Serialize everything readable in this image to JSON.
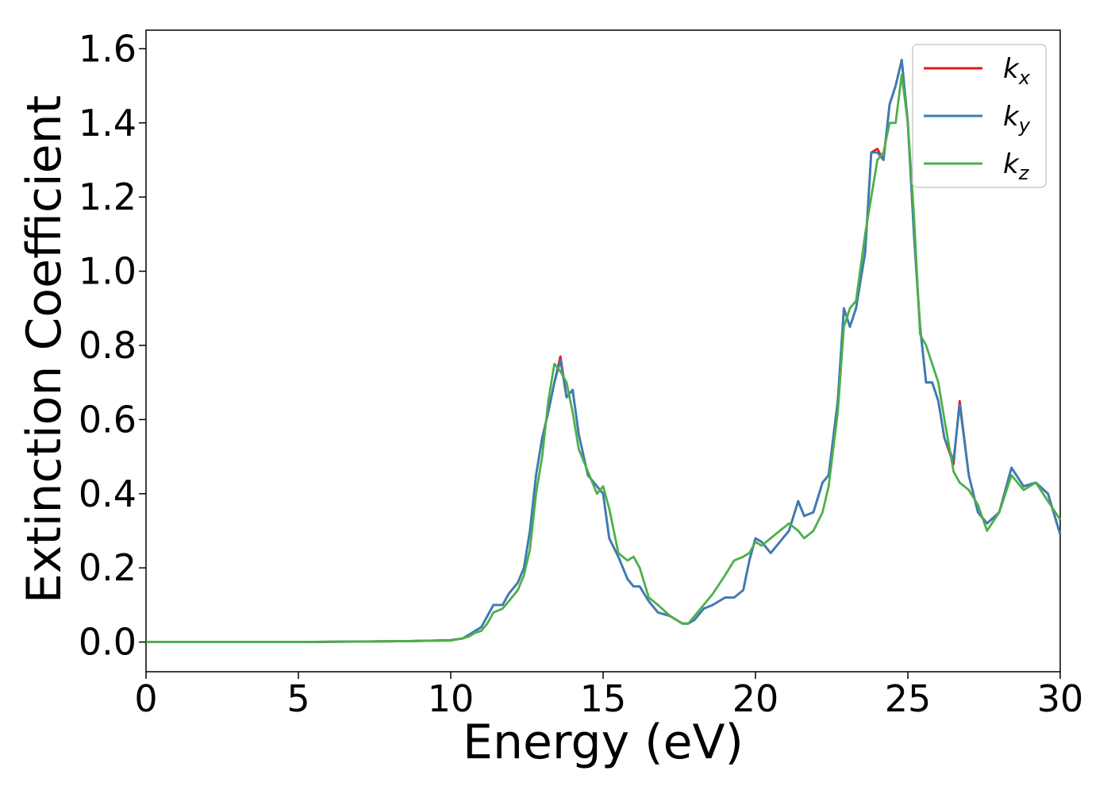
{
  "chart_data": {
    "type": "line",
    "title": "",
    "xlabel": "Energy (eV)",
    "ylabel": "Extinction Coefficient",
    "xlim": [
      0,
      30
    ],
    "ylim": [
      -0.08,
      1.65
    ],
    "xticks": [
      0,
      5,
      10,
      15,
      20,
      25,
      30
    ],
    "xtick_labels": [
      "0",
      "5",
      "10",
      "15",
      "20",
      "25",
      "30"
    ],
    "yticks": [
      0.0,
      0.2,
      0.4,
      0.6,
      0.8,
      1.0,
      1.2,
      1.4,
      1.6
    ],
    "ytick_labels": [
      "0.0",
      "0.2",
      "0.4",
      "0.6",
      "0.8",
      "1.0",
      "1.2",
      "1.4",
      "1.6"
    ],
    "grid": false,
    "legend_position": "top-right",
    "series": [
      {
        "name": "k",
        "subscript": "x",
        "color": "#e41a1c",
        "x": [
          0,
          5,
          8,
          9,
          10,
          10.4,
          10.6,
          10.8,
          11.0,
          11.2,
          11.4,
          11.7,
          11.9,
          12.2,
          12.4,
          12.6,
          12.8,
          13.0,
          13.2,
          13.4,
          13.6,
          13.8,
          14.0,
          14.2,
          14.5,
          14.8,
          15.0,
          15.2,
          15.5,
          15.8,
          16.0,
          16.2,
          16.5,
          16.8,
          17.2,
          17.6,
          17.8,
          18.0,
          18.3,
          18.6,
          19.0,
          19.3,
          19.6,
          19.8,
          20.0,
          20.2,
          20.5,
          20.8,
          21.1,
          21.4,
          21.6,
          21.9,
          22.2,
          22.4,
          22.7,
          22.9,
          23.1,
          23.3,
          23.6,
          23.8,
          24.0,
          24.2,
          24.4,
          24.6,
          24.8,
          25.0,
          25.2,
          25.4,
          25.6,
          25.8,
          26.0,
          26.2,
          26.5,
          26.7,
          27.0,
          27.3,
          27.6,
          28.0,
          28.4,
          28.8,
          29.2,
          29.6,
          30.0
        ],
        "y": [
          0.0,
          0.0,
          0.002,
          0.003,
          0.005,
          0.01,
          0.02,
          0.03,
          0.04,
          0.07,
          0.1,
          0.1,
          0.13,
          0.16,
          0.2,
          0.3,
          0.45,
          0.55,
          0.62,
          0.7,
          0.77,
          0.66,
          0.68,
          0.56,
          0.45,
          0.42,
          0.4,
          0.28,
          0.23,
          0.17,
          0.15,
          0.15,
          0.11,
          0.08,
          0.07,
          0.05,
          0.05,
          0.06,
          0.09,
          0.1,
          0.12,
          0.12,
          0.14,
          0.22,
          0.28,
          0.27,
          0.24,
          0.27,
          0.3,
          0.38,
          0.34,
          0.35,
          0.43,
          0.45,
          0.65,
          0.9,
          0.85,
          0.9,
          1.05,
          1.32,
          1.33,
          1.3,
          1.45,
          1.5,
          1.57,
          1.4,
          1.1,
          0.85,
          0.7,
          0.7,
          0.65,
          0.55,
          0.48,
          0.65,
          0.45,
          0.35,
          0.32,
          0.35,
          0.47,
          0.42,
          0.43,
          0.4,
          0.29
        ]
      },
      {
        "name": "k",
        "subscript": "y",
        "color": "#377eb8",
        "x": [
          0,
          5,
          8,
          9,
          10,
          10.4,
          10.6,
          10.8,
          11.0,
          11.2,
          11.4,
          11.7,
          11.9,
          12.2,
          12.4,
          12.6,
          12.8,
          13.0,
          13.2,
          13.4,
          13.6,
          13.8,
          14.0,
          14.2,
          14.5,
          14.8,
          15.0,
          15.2,
          15.5,
          15.8,
          16.0,
          16.2,
          16.5,
          16.8,
          17.2,
          17.6,
          17.8,
          18.0,
          18.3,
          18.6,
          19.0,
          19.3,
          19.6,
          19.8,
          20.0,
          20.2,
          20.5,
          20.8,
          21.1,
          21.4,
          21.6,
          21.9,
          22.2,
          22.4,
          22.7,
          22.9,
          23.1,
          23.3,
          23.6,
          23.8,
          24.0,
          24.2,
          24.4,
          24.6,
          24.8,
          25.0,
          25.2,
          25.4,
          25.6,
          25.8,
          26.0,
          26.2,
          26.5,
          26.7,
          27.0,
          27.3,
          27.6,
          28.0,
          28.4,
          28.8,
          29.2,
          29.6,
          30.0
        ],
        "y": [
          0.0,
          0.0,
          0.002,
          0.003,
          0.005,
          0.01,
          0.02,
          0.03,
          0.04,
          0.07,
          0.1,
          0.1,
          0.13,
          0.16,
          0.2,
          0.3,
          0.45,
          0.55,
          0.62,
          0.7,
          0.76,
          0.66,
          0.68,
          0.56,
          0.45,
          0.42,
          0.4,
          0.28,
          0.23,
          0.17,
          0.15,
          0.15,
          0.11,
          0.08,
          0.07,
          0.05,
          0.05,
          0.06,
          0.09,
          0.1,
          0.12,
          0.12,
          0.14,
          0.22,
          0.28,
          0.27,
          0.24,
          0.27,
          0.3,
          0.38,
          0.34,
          0.35,
          0.43,
          0.45,
          0.65,
          0.9,
          0.85,
          0.9,
          1.05,
          1.32,
          1.32,
          1.3,
          1.45,
          1.5,
          1.57,
          1.4,
          1.1,
          0.85,
          0.7,
          0.7,
          0.65,
          0.55,
          0.49,
          0.64,
          0.45,
          0.35,
          0.32,
          0.35,
          0.47,
          0.42,
          0.43,
          0.4,
          0.29
        ]
      },
      {
        "name": "k",
        "subscript": "z",
        "color": "#4daf4a",
        "x": [
          0,
          5,
          8,
          9,
          10,
          10.4,
          10.6,
          10.8,
          11.0,
          11.2,
          11.4,
          11.7,
          11.9,
          12.2,
          12.4,
          12.6,
          12.8,
          13.0,
          13.2,
          13.4,
          13.6,
          13.8,
          14.0,
          14.2,
          14.5,
          14.8,
          15.0,
          15.2,
          15.5,
          15.8,
          16.0,
          16.2,
          16.5,
          16.8,
          17.2,
          17.6,
          17.8,
          18.0,
          18.3,
          18.6,
          19.0,
          19.3,
          19.6,
          19.8,
          20.0,
          20.2,
          20.5,
          20.8,
          21.1,
          21.4,
          21.6,
          21.9,
          22.2,
          22.4,
          22.7,
          22.9,
          23.1,
          23.3,
          23.6,
          23.8,
          24.0,
          24.2,
          24.4,
          24.6,
          24.8,
          25.0,
          25.2,
          25.4,
          25.6,
          25.8,
          26.0,
          26.2,
          26.5,
          26.7,
          27.0,
          27.3,
          27.6,
          28.0,
          28.4,
          28.8,
          29.2,
          29.6,
          30.0
        ],
        "y": [
          0.0,
          0.0,
          0.002,
          0.003,
          0.004,
          0.01,
          0.015,
          0.025,
          0.03,
          0.05,
          0.08,
          0.09,
          0.11,
          0.14,
          0.18,
          0.25,
          0.4,
          0.5,
          0.65,
          0.75,
          0.73,
          0.7,
          0.62,
          0.52,
          0.46,
          0.4,
          0.42,
          0.36,
          0.24,
          0.22,
          0.23,
          0.2,
          0.12,
          0.1,
          0.07,
          0.05,
          0.05,
          0.07,
          0.1,
          0.13,
          0.18,
          0.22,
          0.23,
          0.24,
          0.27,
          0.26,
          0.28,
          0.3,
          0.32,
          0.3,
          0.28,
          0.3,
          0.35,
          0.42,
          0.62,
          0.85,
          0.9,
          0.92,
          1.1,
          1.2,
          1.3,
          1.32,
          1.4,
          1.4,
          1.53,
          1.4,
          1.15,
          0.83,
          0.8,
          0.75,
          0.7,
          0.6,
          0.46,
          0.43,
          0.41,
          0.37,
          0.3,
          0.35,
          0.45,
          0.41,
          0.43,
          0.38,
          0.33
        ]
      }
    ]
  }
}
